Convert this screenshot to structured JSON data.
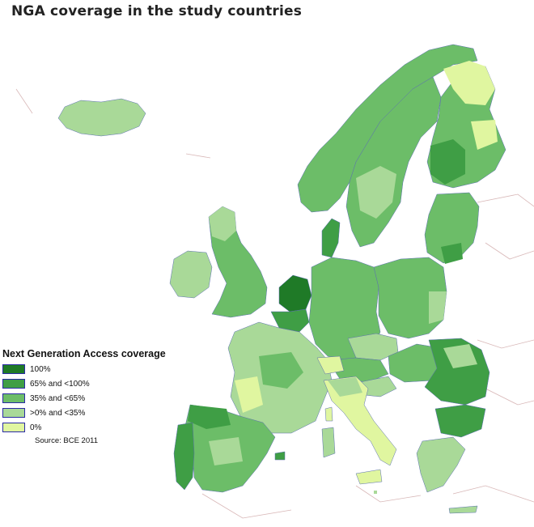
{
  "title": "NGA coverage in the study countries",
  "legend": {
    "title": "Next Generation Access coverage",
    "items": [
      {
        "label": "100%",
        "color": "#1f7a27"
      },
      {
        "label": "65% and <100%",
        "color": "#3f9e45"
      },
      {
        "label": "35% and <65%",
        "color": "#6cbd68"
      },
      {
        "label": ">0% and <35%",
        "color": "#a9d998"
      },
      {
        "label": "0%",
        "color": "#e0f6a0"
      }
    ],
    "source": "Source: BCE 2011"
  },
  "colors": {
    "background": "#ffffff",
    "border": "#c9a3a3",
    "region_line": "#5a6fb0"
  }
}
